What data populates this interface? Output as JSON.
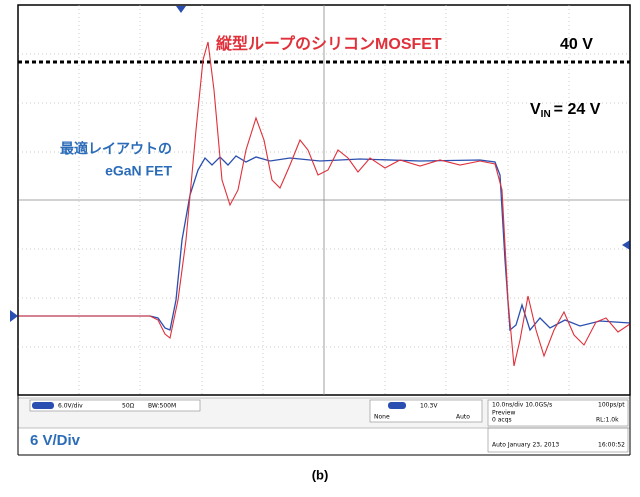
{
  "annotations": {
    "mosfet_label": "縦型ループのシリコンMOSFET",
    "level_label": "40 V",
    "vin_symbol": "V",
    "vin_subscript": "IN",
    "vin_value": "= 24 V",
    "egan_label_line1": "最適レイアウトの",
    "egan_label_line2": "eGaN FET",
    "scale_label": "6 V/Div"
  },
  "status_bar": {
    "channel_scale": "6.0V/div",
    "impedance": "50Ω",
    "bandwidth": "BW:500M",
    "trigger_level": "10.3V",
    "trigger_coupling": "None",
    "trigger_mode": "Auto",
    "timebase": "10.0ns/div 10.0GS/s",
    "resolution": "100ps/pt",
    "acq_state": "Preview",
    "acq_count": "0 acqs",
    "record_length": "RL:1.0k",
    "date_line": "Auto   January 23, 2013",
    "time": "16:00:52"
  },
  "caption": "(b)"
}
